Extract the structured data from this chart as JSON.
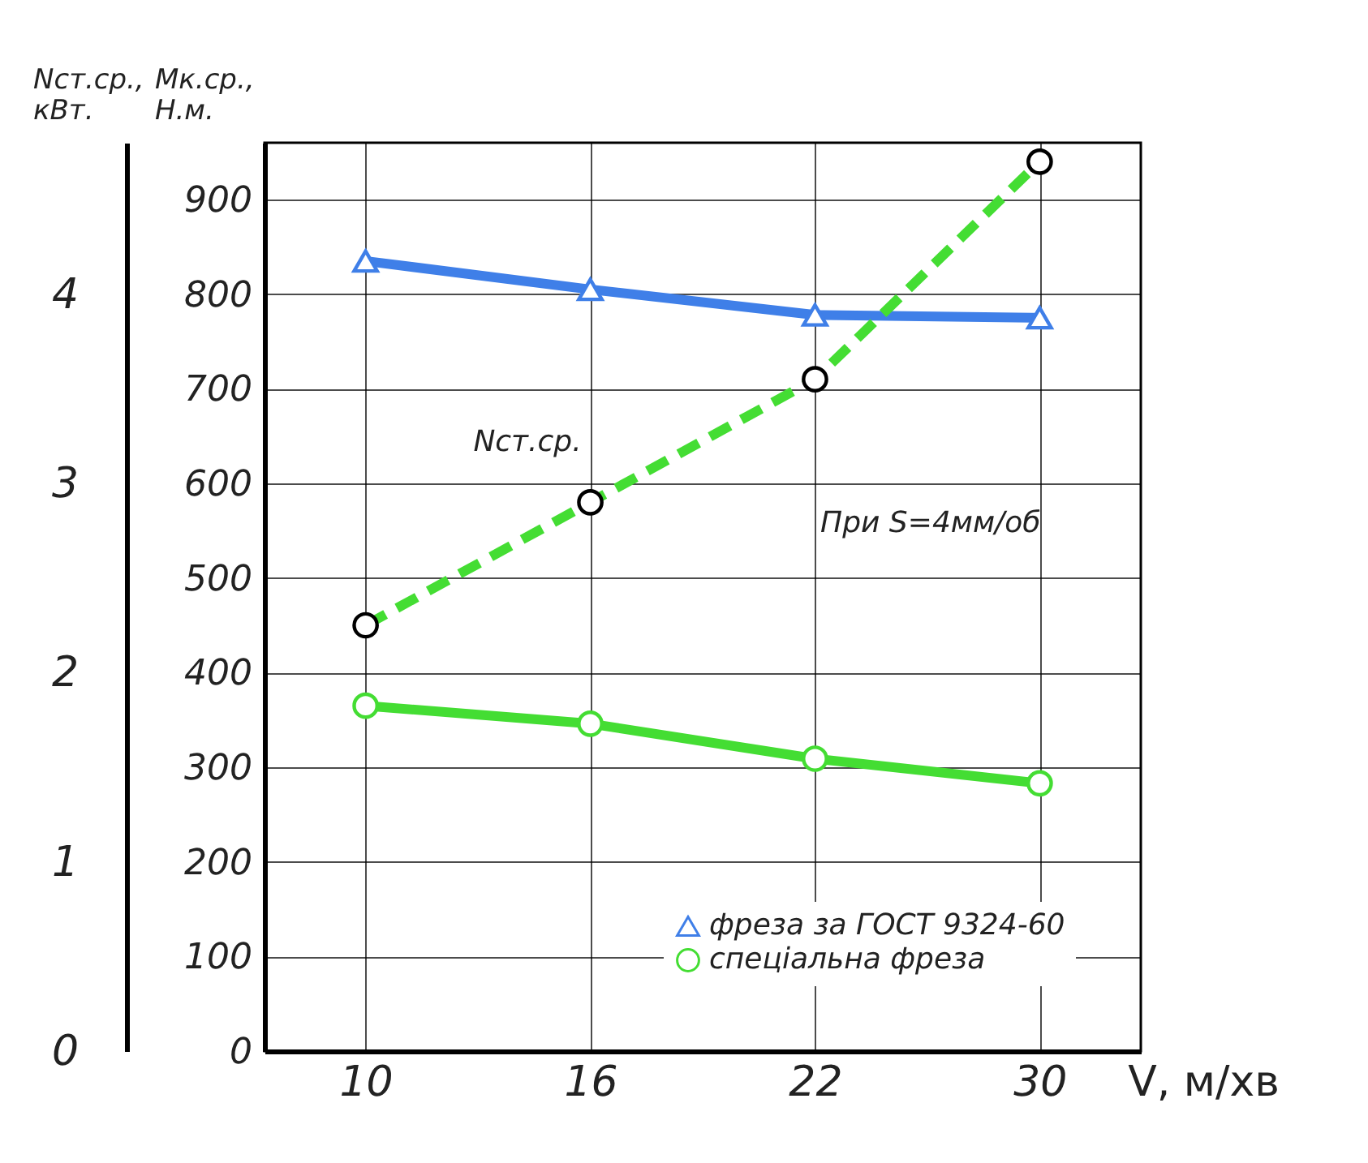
{
  "chart_data": {
    "type": "line",
    "xlabel": "V, м/хв",
    "ylabel": "Мк.ср., Н.м.",
    "y2label": "Nст.ср., кВт.",
    "categories": [
      "10",
      "16",
      "22",
      "30"
    ],
    "series": [
      {
        "name": "фреза за ГОСТ 9324-60",
        "color": "#3f7fe8",
        "marker": "triangle",
        "line_style": "solid",
        "values": [
          835,
          805,
          778,
          775
        ]
      },
      {
        "name": "спеціальна фреза",
        "color": "#44dd33",
        "marker": "circle",
        "line_style": "solid",
        "values": [
          365,
          346,
          309,
          283
        ]
      },
      {
        "color": "#44dd33",
        "marker": "circle",
        "line_style": "dashed",
        "axis": "y2",
        "values": [
          2.25,
          2.9,
          3.55,
          4.7
        ]
      }
    ],
    "ylim": [
      0,
      960
    ],
    "yticks": [
      0,
      100,
      200,
      300,
      400,
      500,
      600,
      700,
      800,
      900
    ],
    "y2lim": [
      0,
      4.8
    ],
    "y2ticks": [
      0,
      1,
      2,
      3,
      4
    ],
    "annotations": [
      "Nст.ср.",
      "При S=4мм/об"
    ],
    "grid": true,
    "legend": "bottom right"
  }
}
